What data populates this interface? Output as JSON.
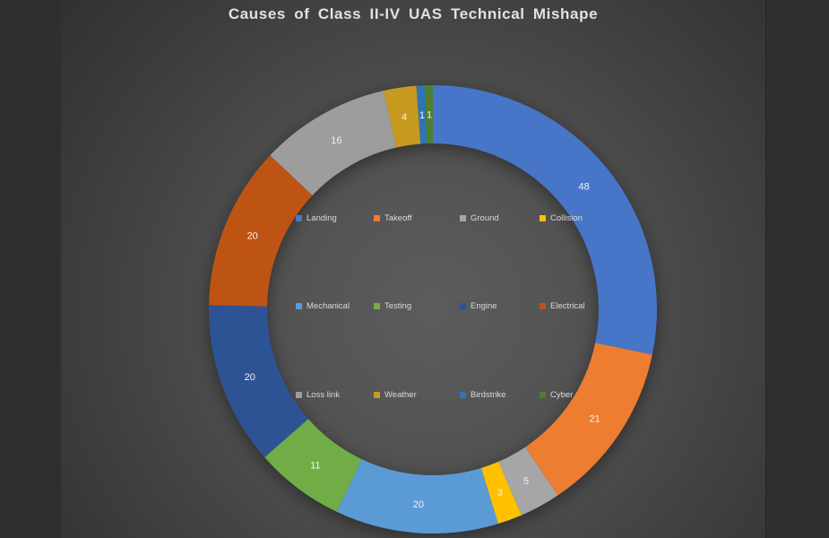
{
  "chart_data": {
    "type": "pie",
    "subtype": "donut",
    "title": "Causes of Class II-IV UAS Technical Mishape",
    "categories": [
      "Landing",
      "Takeoff",
      "Ground",
      "Collision",
      "Mechanical",
      "Testing",
      "Engine",
      "Electrical",
      "Loss link",
      "Weather",
      "Birdstrike",
      "Cyber"
    ],
    "values": [
      48,
      21,
      5,
      3,
      20,
      11,
      20,
      20,
      16,
      4,
      1,
      1
    ],
    "colors": [
      "#4776C9",
      "#ED7D31",
      "#A6A6A6",
      "#FFC000",
      "#5B9BD5",
      "#70AD47",
      "#2E5395",
      "#BE5413",
      "#9D9D9D",
      "#C79A1F",
      "#2E75B6",
      "#4E7E32"
    ],
    "total": 170,
    "data_labels": "values",
    "label_color": "#F2F2F2",
    "legend_position": "center-overlay",
    "legend_text_color": "#D9D9D9",
    "start_angle_deg": 0,
    "direction": "clockwise",
    "hole_ratio": 0.74,
    "background": {
      "slide_center": "#5C5C5C",
      "slide_edge": "#2C2C2C",
      "letterbox": "#2F2F2F",
      "title_color": "#E2E2E2"
    }
  }
}
